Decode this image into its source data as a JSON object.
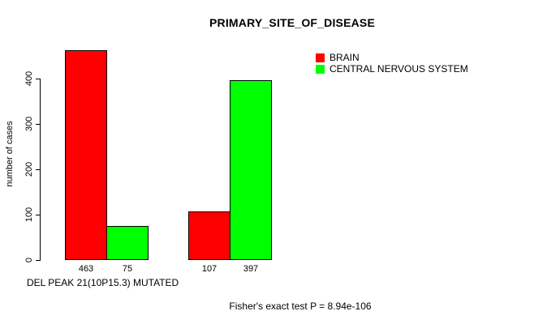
{
  "page": {
    "background": "#ffffff"
  },
  "chart_data": {
    "type": "bar",
    "title": "PRIMARY_SITE_OF_DISEASE",
    "ylabel": "number of cases",
    "xlabel": "DEL PEAK 21(10P15.3) MUTATED",
    "annotation": "Fisher's exact test P = 8.94e-106",
    "axis_range": [
      0,
      400
    ],
    "yticks": [
      0,
      100,
      200,
      300,
      400
    ],
    "grid": false,
    "legend_position": "top-right",
    "num_groups": 2,
    "series": [
      {
        "name": "BRAIN",
        "color": "#ff0000",
        "values": [
          463,
          107
        ],
        "value_labels": [
          "463",
          "107"
        ]
      },
      {
        "name": "CENTRAL NERVOUS SYSTEM",
        "color": "#00ff00",
        "values": [
          75,
          397
        ],
        "value_labels": [
          "75",
          "397"
        ]
      }
    ]
  }
}
